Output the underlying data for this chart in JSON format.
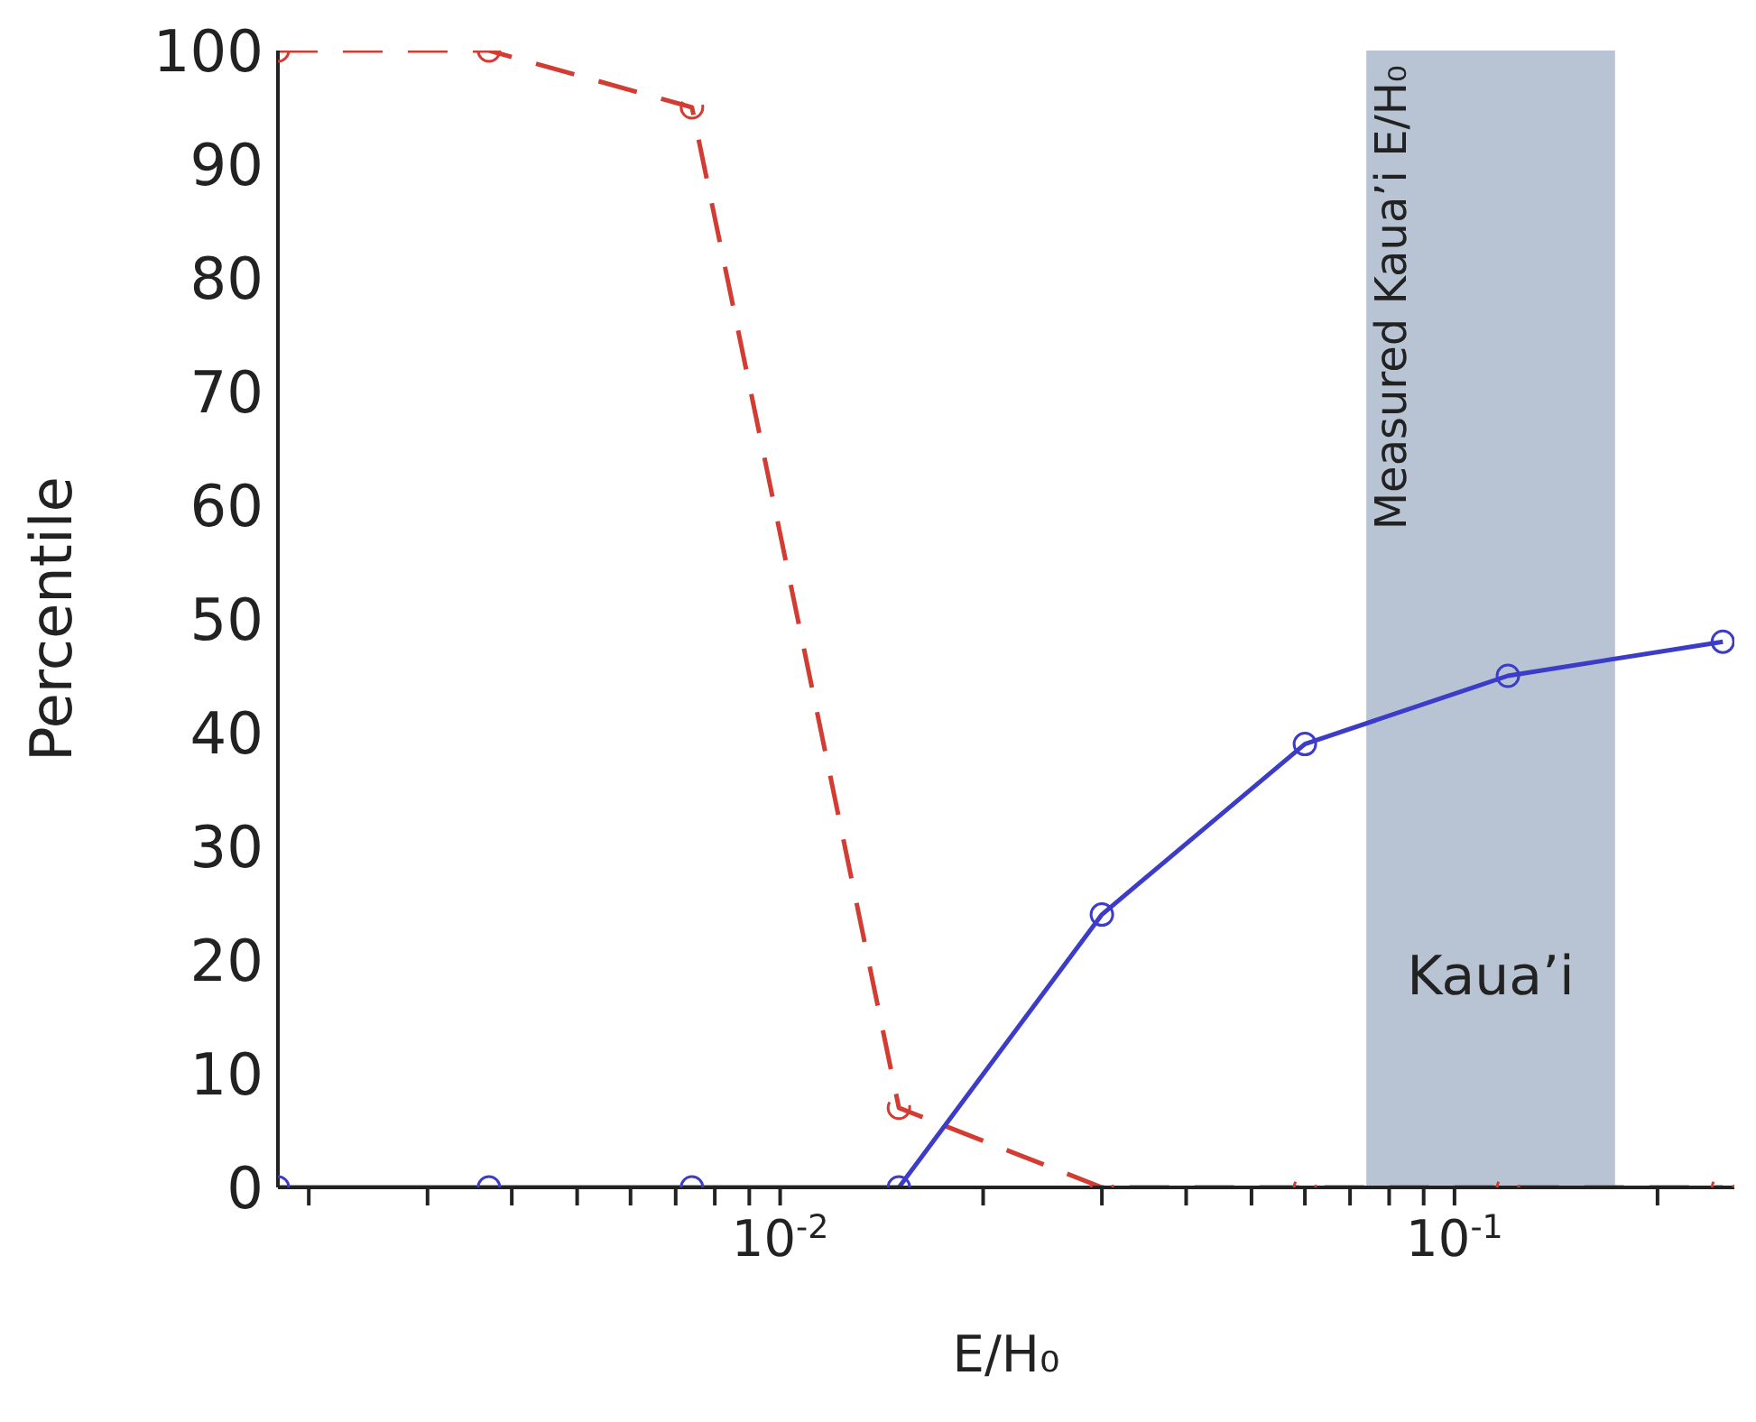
{
  "chart_data": {
    "type": "line",
    "xlabel": "E/H₀",
    "ylabel": "Percentile",
    "x": [
      0.0018,
      0.0037,
      0.0074,
      0.015,
      0.03,
      0.06,
      0.12,
      0.25
    ],
    "series": [
      {
        "color": "#d23c32",
        "line_style": "dashed",
        "values": [
          100,
          100,
          95,
          7,
          0,
          0,
          0,
          0
        ]
      },
      {
        "color": "#3c3cc8",
        "line_style": "solid",
        "values": [
          0,
          0,
          0,
          0,
          24,
          39,
          45,
          48
        ]
      }
    ],
    "log": "x",
    "marker": "circle",
    "grid": false,
    "legend": false,
    "xlim": [
      0.0018,
      0.26
    ],
    "xticks": [
      {
        "value": 0.002,
        "label": null
      },
      {
        "value": 0.003,
        "label": null
      },
      {
        "value": 0.004,
        "label": null
      },
      {
        "value": 0.005,
        "label": null
      },
      {
        "value": 0.006,
        "label": null
      },
      {
        "value": 0.007,
        "label": null
      },
      {
        "value": 0.008,
        "label": null
      },
      {
        "value": 0.009,
        "label": null
      },
      {
        "value": 0.01,
        "label": "10$^{-2}$"
      },
      {
        "value": 0.02,
        "label": null
      },
      {
        "value": 0.03,
        "label": null
      },
      {
        "value": 0.04,
        "label": null
      },
      {
        "value": 0.05,
        "label": null
      },
      {
        "value": 0.06,
        "label": null
      },
      {
        "value": 0.07,
        "label": null
      },
      {
        "value": 0.08,
        "label": null
      },
      {
        "value": 0.09,
        "label": null
      },
      {
        "value": 0.1,
        "label": "10$^{-1}$"
      },
      {
        "value": 0.2,
        "label": null
      }
    ],
    "ylim": [
      0,
      100
    ],
    "yticks": [
      0,
      10,
      20,
      30,
      40,
      50,
      60,
      70,
      80,
      90,
      100
    ],
    "bands": [
      {
        "axis": "x",
        "from": 0.074,
        "to": 0.173,
        "label": "Measured Kaua’i E/H₀",
        "color": "#b8c4d4"
      }
    ],
    "annotations": [
      "Kaua’i"
    ]
  }
}
